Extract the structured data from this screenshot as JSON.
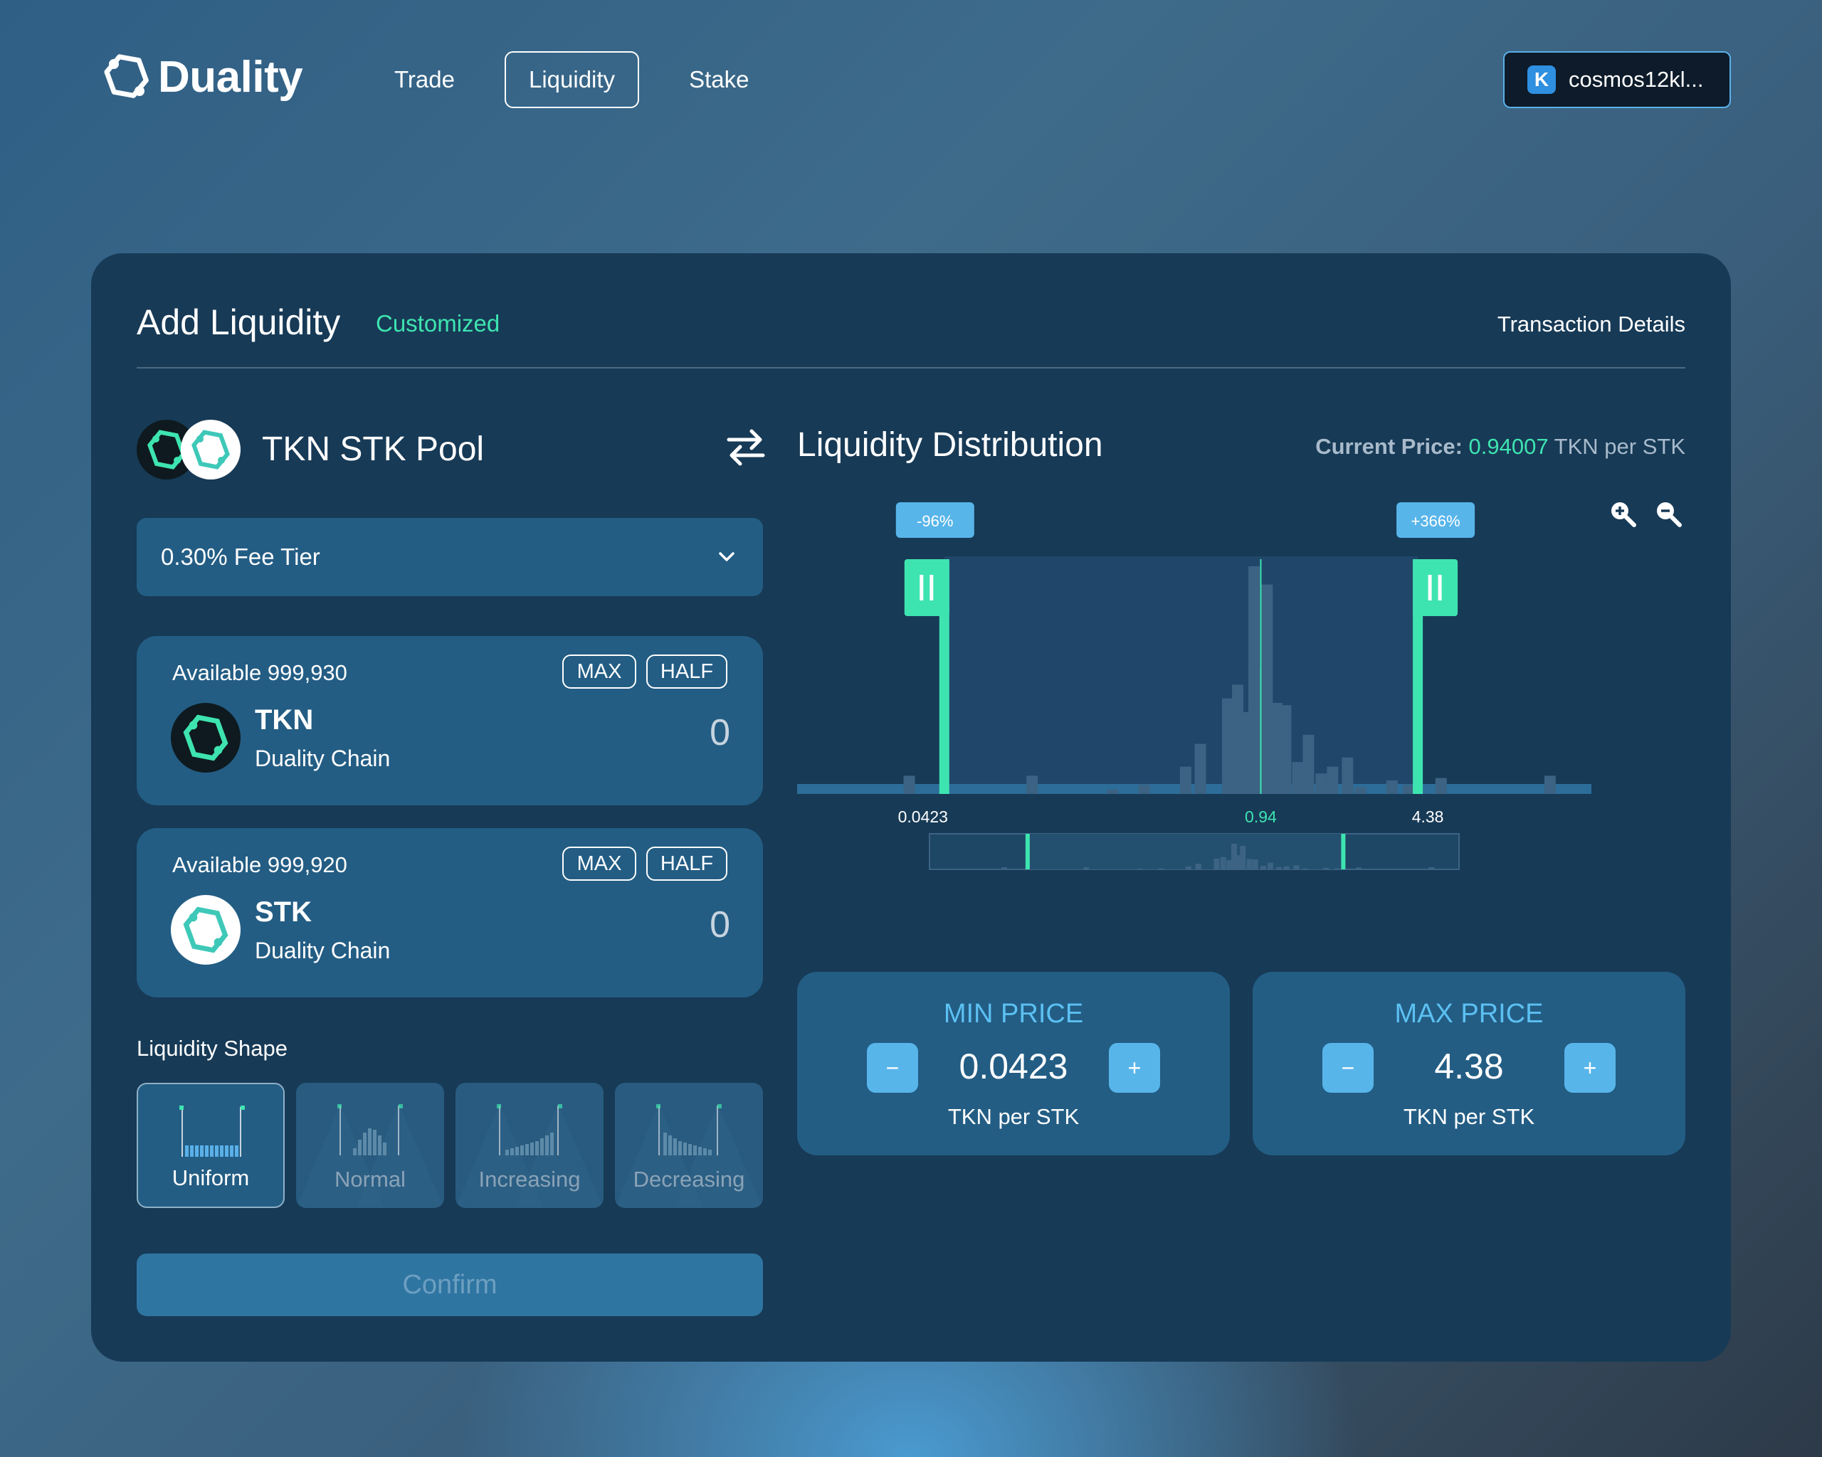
{
  "header": {
    "logo_text": "Duality",
    "nav": [
      {
        "label": "Trade",
        "active": false
      },
      {
        "label": "Liquidity",
        "active": true
      },
      {
        "label": "Stake",
        "active": false
      }
    ],
    "wallet": {
      "icon_letter": "K",
      "address": "cosmos12kl..."
    }
  },
  "card": {
    "title": "Add Liquidity",
    "badge": "Customized",
    "transaction_details": "Transaction Details"
  },
  "pool": {
    "name": "TKN STK Pool",
    "fee_tier": "0.30% Fee Tier"
  },
  "tokens": [
    {
      "available": "Available 999,930",
      "max_label": "MAX",
      "half_label": "HALF",
      "symbol": "TKN",
      "chain": "Duality Chain",
      "amount": "0"
    },
    {
      "available": "Available 999,920",
      "max_label": "MAX",
      "half_label": "HALF",
      "symbol": "STK",
      "chain": "Duality Chain",
      "amount": "0"
    }
  ],
  "liquidity_shape": {
    "label": "Liquidity Shape",
    "options": [
      {
        "name": "Uniform",
        "active": true
      },
      {
        "name": "Normal",
        "active": false
      },
      {
        "name": "Increasing",
        "active": false
      },
      {
        "name": "Decreasing",
        "active": false
      }
    ]
  },
  "confirm_label": "Confirm",
  "distribution": {
    "title": "Liquidity Distribution",
    "current_price_label": "Current Price:",
    "current_price_value": "0.94007",
    "current_price_unit": "TKN per STK",
    "min_badge": "-96%",
    "max_badge": "+366%",
    "tick_min": "0.0423",
    "tick_current": "0.94",
    "tick_max": "4.38"
  },
  "min_price": {
    "title": "MIN PRICE",
    "value": "0.0423",
    "unit": "TKN per STK",
    "minus": "−",
    "plus": "+"
  },
  "max_price": {
    "title": "MAX PRICE",
    "value": "4.38",
    "unit": "TKN per STK",
    "minus": "−",
    "plus": "+"
  },
  "chart_data": {
    "type": "bar",
    "x": [
      0.03,
      0.0423,
      0.06,
      0.1,
      0.16,
      0.22,
      0.3,
      0.38,
      0.45,
      0.52,
      0.6,
      0.68,
      0.75,
      0.82,
      0.88,
      0.94,
      1.0,
      1.1,
      1.2,
      1.35,
      1.5,
      1.7,
      1.9,
      2.2,
      2.5,
      2.9,
      3.4,
      4.0,
      4.38,
      5.5,
      8.0,
      16.0
    ],
    "values": [
      8,
      0,
      0,
      8,
      0,
      2,
      4,
      0,
      12,
      22,
      0,
      42,
      48,
      36,
      100,
      55,
      92,
      40,
      39,
      14,
      26,
      9,
      12,
      16,
      3,
      0,
      6,
      4,
      0,
      7,
      0,
      8
    ],
    "range_min": 0.0423,
    "range_max": 4.38,
    "current_price": 0.94,
    "colors": {
      "accent": "#3ee4b0",
      "bar": "#3c6383",
      "selected_bg": "#20476a",
      "badge": "#58b5ea"
    }
  },
  "colors": {
    "accent": "#3ee4b0",
    "card": "#173a56",
    "panel": "#235d84",
    "button": "#58b5ea"
  }
}
